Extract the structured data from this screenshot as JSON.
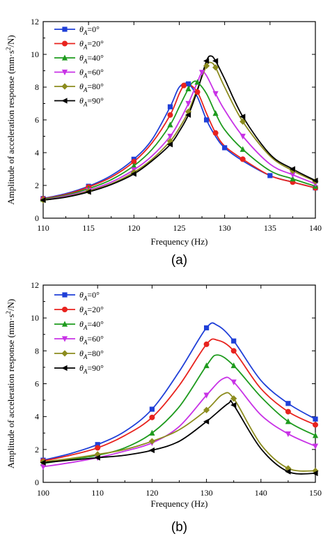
{
  "chart_data": [
    {
      "type": "line",
      "panel_label": "(a)",
      "xlabel": "Frequency (Hz)",
      "ylabel": "Amplitude of acceleration response (mm·s²/N)",
      "xlim": [
        110,
        140
      ],
      "ylim": [
        0,
        12
      ],
      "xticks": [
        110,
        115,
        120,
        125,
        130,
        135,
        140
      ],
      "yticks": [
        0,
        2,
        4,
        6,
        8,
        10,
        12
      ],
      "legend_position": "top-left",
      "grid": false,
      "series": [
        {
          "name": "θA=0°",
          "color": "#1f3fd8",
          "marker": "square",
          "x": [
            110,
            112.5,
            115,
            117.5,
            120,
            122,
            124,
            125,
            126,
            127,
            128,
            129,
            130,
            132,
            135,
            137.5,
            140
          ],
          "y": [
            1.2,
            1.5,
            1.95,
            2.6,
            3.6,
            4.8,
            6.8,
            8.0,
            8.2,
            7.4,
            6.0,
            5.0,
            4.3,
            3.5,
            2.6,
            2.2,
            1.85
          ]
        },
        {
          "name": "θA=20°",
          "color": "#e8231e",
          "marker": "circle",
          "x": [
            110,
            112.5,
            115,
            117.5,
            120,
            122,
            124,
            125,
            125.5,
            126,
            127,
            128,
            129,
            130,
            132,
            135,
            137.5,
            140
          ],
          "y": [
            1.18,
            1.45,
            1.9,
            2.5,
            3.45,
            4.6,
            6.3,
            7.6,
            8.1,
            8.2,
            7.7,
            6.4,
            5.2,
            4.4,
            3.6,
            2.6,
            2.2,
            1.85
          ]
        },
        {
          "name": "θA=40°",
          "color": "#1e9b1e",
          "marker": "triangle-up",
          "x": [
            110,
            112.5,
            115,
            117.5,
            120,
            122,
            124,
            125,
            126,
            126.5,
            127,
            128,
            129,
            130,
            132,
            135,
            137.5,
            140
          ],
          "y": [
            1.15,
            1.4,
            1.8,
            2.35,
            3.2,
            4.2,
            5.7,
            6.8,
            7.9,
            8.3,
            8.3,
            7.6,
            6.4,
            5.4,
            4.2,
            2.9,
            2.4,
            1.95
          ]
        },
        {
          "name": "θA=60°",
          "color": "#c832e6",
          "marker": "triangle-down",
          "x": [
            110,
            112.5,
            115,
            117.5,
            120,
            122,
            124,
            125,
            126,
            127,
            127.5,
            128,
            129,
            130,
            132,
            135,
            137.5,
            140
          ],
          "y": [
            1.1,
            1.35,
            1.7,
            2.2,
            2.95,
            3.8,
            5.0,
            5.9,
            7.0,
            8.3,
            8.9,
            8.7,
            7.6,
            6.6,
            5.0,
            3.3,
            2.65,
            2.1
          ]
        },
        {
          "name": "θA=80°",
          "color": "#8c8c1e",
          "marker": "diamond",
          "x": [
            110,
            112.5,
            115,
            117.5,
            120,
            122,
            124,
            125,
            126,
            127,
            128,
            128.5,
            129,
            130,
            132,
            135,
            137.5,
            140
          ],
          "y": [
            1.1,
            1.3,
            1.65,
            2.1,
            2.8,
            3.6,
            4.7,
            5.5,
            6.5,
            7.9,
            9.3,
            9.5,
            9.2,
            8.0,
            5.9,
            3.8,
            2.9,
            2.25
          ]
        },
        {
          "name": "θA=90°",
          "color": "#000000",
          "marker": "triangle-left",
          "x": [
            110,
            112.5,
            115,
            117.5,
            120,
            122,
            124,
            125,
            126,
            127,
            128,
            128.5,
            129,
            130,
            132,
            135,
            137.5,
            140
          ],
          "y": [
            1.1,
            1.28,
            1.6,
            2.05,
            2.7,
            3.5,
            4.5,
            5.3,
            6.3,
            7.8,
            9.6,
            9.9,
            9.6,
            8.5,
            6.2,
            3.9,
            3.0,
            2.3
          ]
        }
      ]
    },
    {
      "type": "line",
      "panel_label": "(b)",
      "xlabel": "Frequency (Hz)",
      "ylabel": "Amplitude of acceleration response (mm·s²/N)",
      "xlim": [
        100,
        150
      ],
      "ylim": [
        0,
        12
      ],
      "xticks": [
        100,
        110,
        120,
        130,
        140,
        150
      ],
      "yticks": [
        0,
        2,
        4,
        6,
        8,
        10,
        12
      ],
      "legend_position": "top-left",
      "grid": false,
      "series": [
        {
          "name": "θA=0°",
          "color": "#1f3fd8",
          "marker": "square",
          "x": [
            100,
            105,
            110,
            115,
            120,
            125,
            130,
            132,
            135,
            140,
            145,
            150
          ],
          "y": [
            1.35,
            1.75,
            2.3,
            3.1,
            4.45,
            6.75,
            9.4,
            9.55,
            8.6,
            6.2,
            4.8,
            3.85
          ]
        },
        {
          "name": "θA=20°",
          "color": "#e8231e",
          "marker": "circle",
          "x": [
            100,
            105,
            110,
            115,
            120,
            125,
            130,
            132,
            135,
            140,
            145,
            150
          ],
          "y": [
            1.3,
            1.65,
            2.1,
            2.85,
            3.95,
            5.9,
            8.4,
            8.65,
            8.0,
            5.7,
            4.3,
            3.5
          ]
        },
        {
          "name": "θA=40°",
          "color": "#1e9b1e",
          "marker": "triangle-up",
          "x": [
            100,
            105,
            110,
            115,
            120,
            125,
            130,
            132,
            135,
            140,
            145,
            150
          ],
          "y": [
            1.15,
            1.4,
            1.65,
            2.1,
            3.0,
            4.6,
            7.1,
            7.75,
            7.1,
            5.2,
            3.7,
            2.85
          ]
        },
        {
          "name": "θA=60°",
          "color": "#c832e6",
          "marker": "triangle-down",
          "x": [
            100,
            105,
            110,
            115,
            120,
            125,
            130,
            133,
            135,
            140,
            145,
            150
          ],
          "y": [
            0.95,
            1.2,
            1.5,
            1.9,
            2.4,
            3.4,
            5.3,
            6.3,
            6.1,
            4.1,
            2.95,
            2.2
          ]
        },
        {
          "name": "θA=80°",
          "color": "#8c8c1e",
          "marker": "diamond",
          "x": [
            100,
            105,
            110,
            115,
            120,
            125,
            130,
            133,
            135,
            140,
            145,
            150
          ],
          "y": [
            1.25,
            1.45,
            1.7,
            2.0,
            2.5,
            3.2,
            4.4,
            5.35,
            5.1,
            2.3,
            0.85,
            0.7
          ]
        },
        {
          "name": "θA=90°",
          "color": "#000000",
          "marker": "triangle-left",
          "x": [
            100,
            105,
            110,
            115,
            120,
            125,
            130,
            134,
            135,
            140,
            145,
            150
          ],
          "y": [
            1.2,
            1.35,
            1.5,
            1.65,
            1.95,
            2.5,
            3.7,
            4.8,
            4.7,
            2.05,
            0.65,
            0.55
          ]
        }
      ]
    }
  ]
}
